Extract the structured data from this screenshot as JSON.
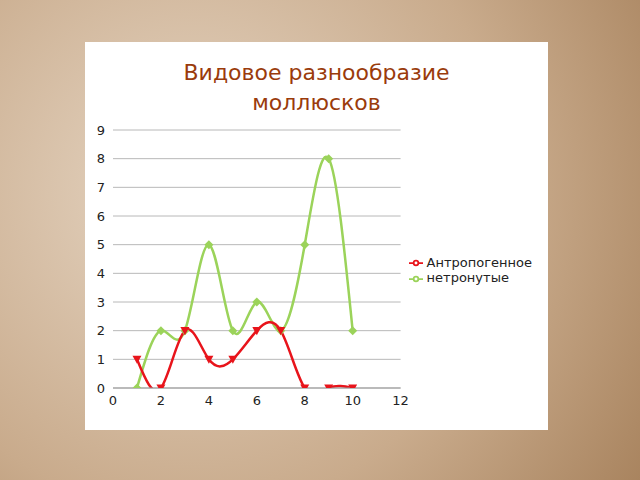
{
  "chart_data": {
    "type": "line",
    "title": "Видовое разнообразие моллюсков",
    "x": [
      1,
      2,
      3,
      4,
      5,
      6,
      7,
      8,
      9,
      10
    ],
    "series": [
      {
        "name": "нетронутые",
        "color": "#9bd35a",
        "marker": "diamond",
        "values": [
          0,
          2,
          2,
          5,
          2,
          3,
          2,
          5,
          8,
          2
        ]
      },
      {
        "name": "Антропогенное",
        "color": "#e8141b",
        "marker": "triangle-down",
        "values": [
          1,
          0,
          2,
          1,
          1,
          2,
          2,
          0,
          0,
          0
        ]
      }
    ],
    "xlim": [
      0,
      12
    ],
    "xticks": [
      0,
      2,
      4,
      6,
      8,
      10,
      12
    ],
    "ylim": [
      0,
      9
    ],
    "yticks": [
      0,
      1,
      2,
      3,
      4,
      5,
      6,
      7,
      8,
      9
    ],
    "grid": true,
    "legend": "right"
  }
}
